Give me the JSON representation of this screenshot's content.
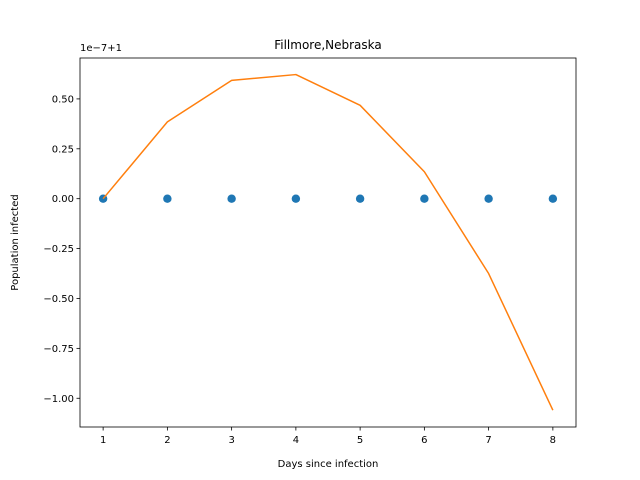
{
  "chart_data": {
    "type": "line",
    "title": "Fillmore,Nebraska",
    "xlabel": "Days since infection",
    "ylabel": "Population infected",
    "offset_label": "1e−7+1",
    "xlim": [
      0.64,
      8.36
    ],
    "ylim": [
      -1.144,
      0.705
    ],
    "x_ticks": [
      1,
      2,
      3,
      4,
      5,
      6,
      7,
      8
    ],
    "x_tick_labels": [
      "1",
      "2",
      "3",
      "4",
      "5",
      "6",
      "7",
      "8"
    ],
    "y_ticks": [
      0.5,
      0.25,
      0.0,
      -0.25,
      -0.5,
      -0.75,
      -1.0
    ],
    "y_tick_labels": [
      "0.50",
      "0.25",
      "0.00",
      "−0.25",
      "−0.50",
      "−0.75",
      "−1.00"
    ],
    "grid": false,
    "series": [
      {
        "kind": "scatter",
        "color": "#1f77b4",
        "x": [
          1,
          2,
          3,
          4,
          5,
          6,
          7,
          8
        ],
        "values": [
          0,
          0,
          0,
          0,
          0,
          0,
          0,
          0
        ]
      },
      {
        "kind": "line",
        "color": "#ff7f0e",
        "x": [
          1,
          2,
          3,
          4,
          5,
          6,
          7,
          8
        ],
        "values": [
          0.0,
          0.385,
          0.593,
          0.622,
          0.468,
          0.135,
          -0.375,
          -1.06
        ]
      }
    ]
  }
}
